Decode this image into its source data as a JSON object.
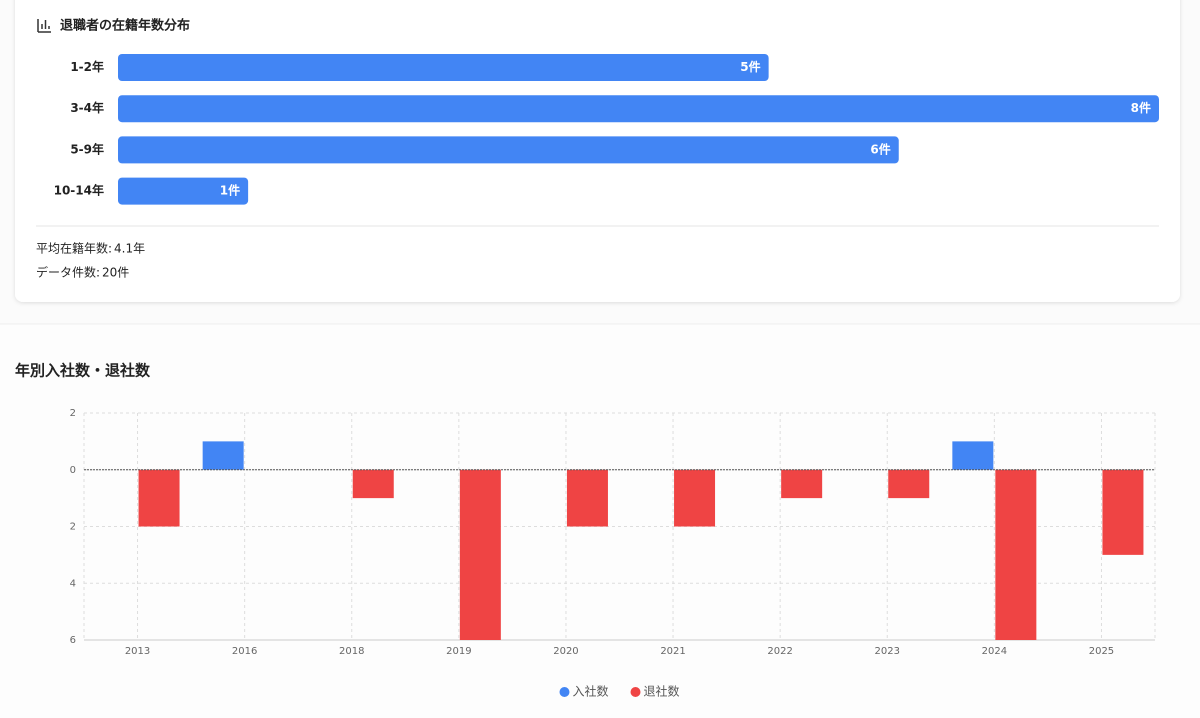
{
  "chart_data": [
    {
      "type": "bar",
      "orientation": "horizontal",
      "title": "退職者の在籍年数分布",
      "categories": [
        "1-2年",
        "3-4年",
        "5-9年",
        "10-14年"
      ],
      "values": [
        5,
        8,
        6,
        1
      ],
      "value_labels": [
        "5件",
        "8件",
        "6件",
        "1件"
      ],
      "color": "#4285f4",
      "xlim": [
        0,
        8
      ]
    },
    {
      "type": "bar",
      "title": "年別入社数・退社数",
      "categories": [
        "2013",
        "2016",
        "2018",
        "2019",
        "2020",
        "2021",
        "2022",
        "2023",
        "2024",
        "2025"
      ],
      "series": [
        {
          "name": "入社数",
          "color": "#4285f4",
          "values": [
            0,
            1,
            0,
            0,
            0,
            0,
            0,
            0,
            1,
            0
          ]
        },
        {
          "name": "退社数",
          "color": "#ef4444",
          "values": [
            -2,
            0,
            -1,
            -6,
            -2,
            -2,
            -1,
            -1,
            -6,
            -3
          ]
        }
      ],
      "ylim": [
        -6,
        2
      ],
      "yticks": [
        2,
        0,
        {
          "value": -2,
          "label": "2"
        },
        {
          "value": -4,
          "label": "4"
        },
        {
          "value": -6,
          "label": "6"
        }
      ],
      "grid": true,
      "legend": "bottom"
    }
  ],
  "stats": [
    {
      "label": "平均在籍年数:",
      "value": "4.1年"
    },
    {
      "label": "データ件数:",
      "value": "20件"
    }
  ]
}
